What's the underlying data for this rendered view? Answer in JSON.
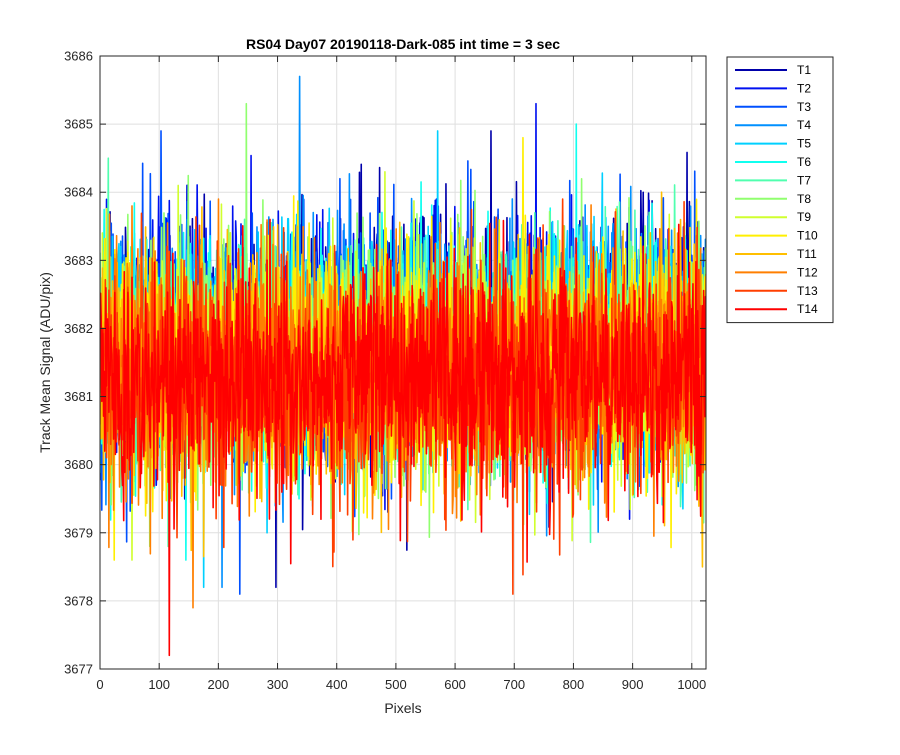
{
  "chart_data": {
    "type": "line",
    "title": "RS04 Day07 20190118-Dark-085 int time = 3 sec",
    "xlabel": "Pixels",
    "ylabel": "Track Mean Signal (ADU/pix)",
    "xlim": [
      0,
      1024
    ],
    "ylim": [
      3677,
      3686
    ],
    "xticks": [
      0,
      100,
      200,
      300,
      400,
      500,
      600,
      700,
      800,
      900,
      1000
    ],
    "yticks": [
      3677,
      3678,
      3679,
      3680,
      3681,
      3682,
      3683,
      3684,
      3685,
      3686
    ],
    "grid": true,
    "legend_location": "outside-top-right",
    "points_per_series": 1024,
    "series": [
      {
        "name": "T1",
        "color": "#0000aa",
        "mean": 3681.9,
        "std": 0.85,
        "min": 3678.2,
        "max": 3684.9
      },
      {
        "name": "T2",
        "color": "#0010f0",
        "mean": 3681.9,
        "std": 0.85,
        "min": 3679.2,
        "max": 3685.3
      },
      {
        "name": "T3",
        "color": "#0050ff",
        "mean": 3681.8,
        "std": 0.85,
        "min": 3678.1,
        "max": 3684.9
      },
      {
        "name": "T4",
        "color": "#0090ff",
        "mean": 3681.8,
        "std": 0.85,
        "min": 3678.2,
        "max": 3685.7
      },
      {
        "name": "T5",
        "color": "#00d0ff",
        "mean": 3681.7,
        "std": 0.85,
        "min": 3678.2,
        "max": 3684.9
      },
      {
        "name": "T6",
        "color": "#10ffef",
        "mean": 3681.7,
        "std": 0.85,
        "min": 3678.6,
        "max": 3685.0
      },
      {
        "name": "T7",
        "color": "#50ffaf",
        "mean": 3681.6,
        "std": 0.85,
        "min": 3678.8,
        "max": 3684.5
      },
      {
        "name": "T8",
        "color": "#90ff6f",
        "mean": 3681.6,
        "std": 0.85,
        "min": 3678.8,
        "max": 3685.3
      },
      {
        "name": "T9",
        "color": "#d0ff2f",
        "mean": 3681.5,
        "std": 0.85,
        "min": 3678.6,
        "max": 3684.3
      },
      {
        "name": "T10",
        "color": "#ffef00",
        "mean": 3681.5,
        "std": 0.85,
        "min": 3678.6,
        "max": 3684.8
      },
      {
        "name": "T11",
        "color": "#ffbf00",
        "mean": 3681.4,
        "std": 0.85,
        "min": 3678.5,
        "max": 3684.0
      },
      {
        "name": "T12",
        "color": "#ff7f00",
        "mean": 3681.4,
        "std": 0.85,
        "min": 3677.9,
        "max": 3683.9
      },
      {
        "name": "T13",
        "color": "#ff3f00",
        "mean": 3681.3,
        "std": 0.85,
        "min": 3678.1,
        "max": 3683.9
      },
      {
        "name": "T14",
        "color": "#ff0000",
        "mean": 3681.3,
        "std": 0.85,
        "min": 3677.2,
        "max": 3683.6
      }
    ]
  }
}
